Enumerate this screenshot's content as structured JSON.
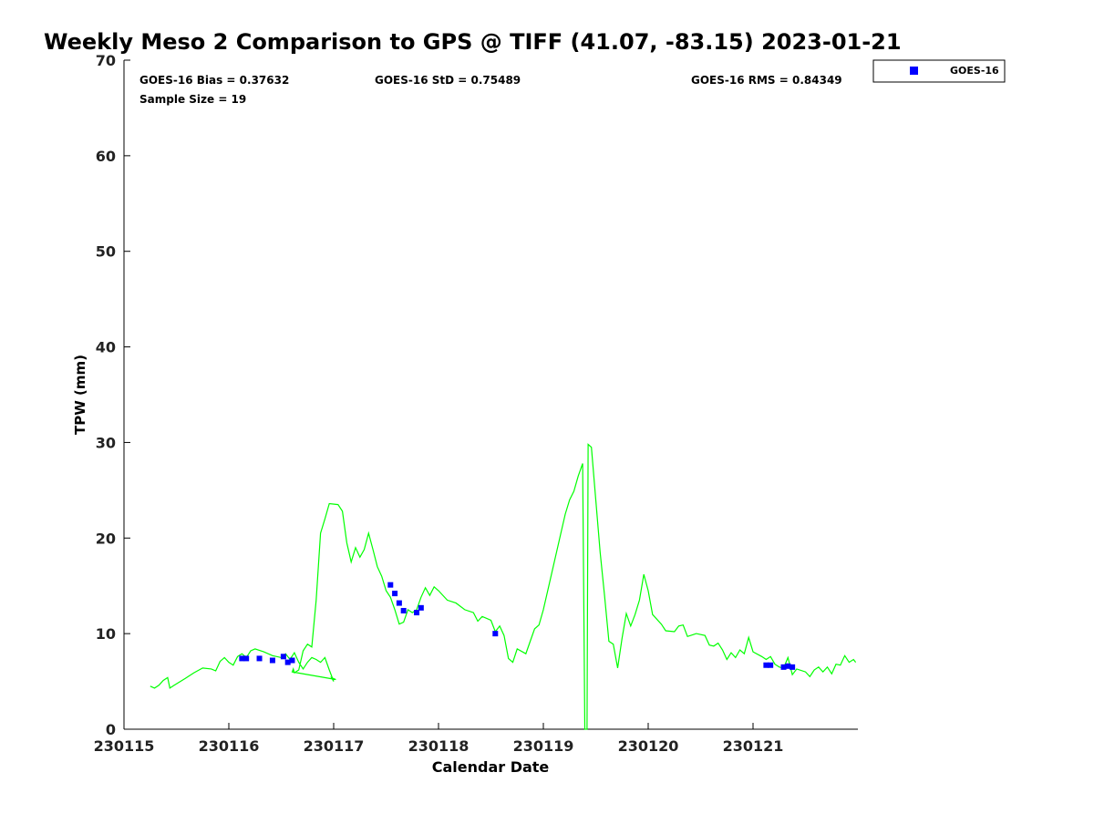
{
  "chart_data": {
    "type": "line",
    "title": "Weekly Meso 2 Comparison to GPS @ TIFF (41.07, -83.15) 2023-01-21",
    "xlabel": "Calendar Date",
    "ylabel": "TPW (mm)",
    "x_ticks": [
      "230115",
      "230116",
      "230117",
      "230118",
      "230119",
      "230120",
      "230121"
    ],
    "xlim": [
      "2023-01-15T00:00",
      "2023-01-22T00:00"
    ],
    "ylim": [
      0,
      70
    ],
    "y_ticks": [
      0,
      10,
      20,
      30,
      40,
      50,
      60,
      70
    ],
    "grid": false,
    "legend_position": "outside-top-right",
    "stats": {
      "bias": "GOES-16 Bias = 0.37632",
      "std": "GOES-16 StD = 0.75489",
      "rms": "GOES-16 RMS = 0.84349",
      "sample": "Sample Size = 19"
    },
    "series": [
      {
        "name": "GPS",
        "kind": "line",
        "color": "#00ff00",
        "points": [
          [
            "2023-01-15T06:00",
            4.5
          ],
          [
            "2023-01-15T07:00",
            4.3
          ],
          [
            "2023-01-15T08:00",
            4.6
          ],
          [
            "2023-01-15T09:00",
            5.1
          ],
          [
            "2023-01-15T10:00",
            5.4
          ],
          [
            "2023-01-15T10:30",
            4.3
          ],
          [
            "2023-01-15T11:30",
            4.6
          ],
          [
            "2023-01-15T14:00",
            5.3
          ],
          [
            "2023-01-15T16:00",
            5.9
          ],
          [
            "2023-01-15T18:00",
            6.4
          ],
          [
            "2023-01-15T20:00",
            6.3
          ],
          [
            "2023-01-15T21:00",
            6.1
          ],
          [
            "2023-01-15T22:00",
            7.1
          ],
          [
            "2023-01-15T23:00",
            7.5
          ],
          [
            "2023-01-16T00:00",
            7.0
          ],
          [
            "2023-01-16T01:00",
            6.7
          ],
          [
            "2023-01-16T02:00",
            7.6
          ],
          [
            "2023-01-16T03:00",
            7.9
          ],
          [
            "2023-01-16T04:00",
            7.5
          ],
          [
            "2023-01-16T05:00",
            8.2
          ],
          [
            "2023-01-16T06:00",
            8.4
          ],
          [
            "2023-01-16T08:00",
            8.1
          ],
          [
            "2023-01-16T10:00",
            7.7
          ],
          [
            "2023-01-16T12:00",
            7.5
          ],
          [
            "2023-01-16T13:00",
            7.9
          ],
          [
            "2023-01-16T14:00",
            7.3
          ],
          [
            "2023-01-16T15:00",
            8.0
          ],
          [
            "2023-01-16T16:00",
            7.0
          ],
          [
            "2023-01-16T17:00",
            6.3
          ],
          [
            "2023-01-16T18:00",
            7.0
          ],
          [
            "2023-01-16T19:00",
            7.5
          ],
          [
            "2023-01-16T20:00",
            7.3
          ],
          [
            "2023-01-16T21:00",
            7.0
          ],
          [
            "2023-01-16T22:00",
            7.5
          ],
          [
            "2023-01-16T23:00",
            6.2
          ],
          [
            "2023-01-17T00:00",
            5.0
          ],
          [
            "2023-01-16T23:30",
            5.4
          ],
          [
            "2023-01-17T00:30",
            5.2
          ],
          [
            "2023-01-16T14:30",
            6.0
          ],
          [
            "2023-01-16T14:45",
            6.3
          ],
          [
            "2023-01-16T15:00",
            5.9
          ],
          [
            "2023-01-16T16:00",
            6.2
          ],
          [
            "2023-01-16T17:00",
            8.2
          ],
          [
            "2023-01-16T18:00",
            8.9
          ],
          [
            "2023-01-16T19:00",
            8.6
          ],
          [
            "2023-01-16T20:00",
            13.5
          ],
          [
            "2023-01-16T21:00",
            20.5
          ],
          [
            "2023-01-16T22:00",
            22.0
          ],
          [
            "2023-01-16T23:00",
            23.6
          ],
          [
            "2023-01-17T01:00",
            23.5
          ],
          [
            "2023-01-17T02:00",
            22.8
          ],
          [
            "2023-01-17T03:00",
            19.5
          ],
          [
            "2023-01-17T04:00",
            17.5
          ],
          [
            "2023-01-17T05:00",
            19.0
          ],
          [
            "2023-01-17T06:00",
            18.0
          ],
          [
            "2023-01-17T07:00",
            18.8
          ],
          [
            "2023-01-17T08:00",
            20.5
          ],
          [
            "2023-01-17T09:00",
            18.8
          ],
          [
            "2023-01-17T10:00",
            17.0
          ],
          [
            "2023-01-17T11:00",
            16.0
          ],
          [
            "2023-01-17T12:00",
            14.5
          ],
          [
            "2023-01-17T13:00",
            13.8
          ],
          [
            "2023-01-17T14:00",
            12.5
          ],
          [
            "2023-01-17T15:00",
            11.0
          ],
          [
            "2023-01-17T16:00",
            11.2
          ],
          [
            "2023-01-17T17:00",
            12.5
          ],
          [
            "2023-01-17T18:00",
            12.2
          ],
          [
            "2023-01-17T19:00",
            12.5
          ],
          [
            "2023-01-17T20:00",
            13.8
          ],
          [
            "2023-01-17T21:00",
            14.8
          ],
          [
            "2023-01-17T22:00",
            14.0
          ],
          [
            "2023-01-17T23:00",
            14.9
          ],
          [
            "2023-01-18T00:00",
            14.5
          ],
          [
            "2023-01-18T02:00",
            13.5
          ],
          [
            "2023-01-18T04:00",
            13.2
          ],
          [
            "2023-01-18T06:00",
            12.5
          ],
          [
            "2023-01-18T08:00",
            12.2
          ],
          [
            "2023-01-18T09:00",
            11.3
          ],
          [
            "2023-01-18T10:00",
            11.8
          ],
          [
            "2023-01-18T12:00",
            11.4
          ],
          [
            "2023-01-18T13:00",
            10.2
          ],
          [
            "2023-01-18T14:00",
            10.8
          ],
          [
            "2023-01-18T15:00",
            9.8
          ],
          [
            "2023-01-18T16:00",
            7.4
          ],
          [
            "2023-01-18T17:00",
            7.0
          ],
          [
            "2023-01-18T18:00",
            8.4
          ],
          [
            "2023-01-18T20:00",
            7.9
          ],
          [
            "2023-01-18T21:00",
            9.2
          ],
          [
            "2023-01-18T22:00",
            10.5
          ],
          [
            "2023-01-18T23:00",
            10.9
          ],
          [
            "2023-01-19T00:00",
            12.5
          ],
          [
            "2023-01-19T02:00",
            16.5
          ],
          [
            "2023-01-19T04:00",
            20.5
          ],
          [
            "2023-01-19T05:00",
            22.5
          ],
          [
            "2023-01-19T06:00",
            24.0
          ],
          [
            "2023-01-19T07:00",
            24.9
          ],
          [
            "2023-01-19T08:00",
            26.5
          ],
          [
            "2023-01-19T09:00",
            27.8
          ],
          [
            "2023-01-19T09:30",
            0.0
          ],
          [
            "2023-01-19T10:00",
            0.0
          ],
          [
            "2023-01-19T10:15",
            29.8
          ],
          [
            "2023-01-19T11:00",
            29.5
          ],
          [
            "2023-01-19T12:00",
            24.0
          ],
          [
            "2023-01-19T13:00",
            18.5
          ],
          [
            "2023-01-19T14:00",
            14.0
          ],
          [
            "2023-01-19T15:00",
            9.2
          ],
          [
            "2023-01-19T16:00",
            8.9
          ],
          [
            "2023-01-19T17:00",
            6.4
          ],
          [
            "2023-01-19T18:00",
            9.5
          ],
          [
            "2023-01-19T19:00",
            12.1
          ],
          [
            "2023-01-19T20:00",
            10.8
          ],
          [
            "2023-01-19T21:00",
            12.0
          ],
          [
            "2023-01-19T22:00",
            13.5
          ],
          [
            "2023-01-19T23:00",
            16.2
          ],
          [
            "2023-01-20T00:00",
            14.5
          ],
          [
            "2023-01-20T01:00",
            12.0
          ],
          [
            "2023-01-20T03:00",
            11.0
          ],
          [
            "2023-01-20T04:00",
            10.3
          ],
          [
            "2023-01-20T06:00",
            10.2
          ],
          [
            "2023-01-20T07:00",
            10.8
          ],
          [
            "2023-01-20T08:00",
            10.9
          ],
          [
            "2023-01-20T09:00",
            9.7
          ],
          [
            "2023-01-20T11:00",
            10.0
          ],
          [
            "2023-01-20T13:00",
            9.8
          ],
          [
            "2023-01-20T14:00",
            8.8
          ],
          [
            "2023-01-20T15:00",
            8.7
          ],
          [
            "2023-01-20T16:00",
            9.0
          ],
          [
            "2023-01-20T17:00",
            8.3
          ],
          [
            "2023-01-20T18:00",
            7.3
          ],
          [
            "2023-01-20T19:00",
            8.0
          ],
          [
            "2023-01-20T20:00",
            7.5
          ],
          [
            "2023-01-20T21:00",
            8.3
          ],
          [
            "2023-01-20T22:00",
            7.9
          ],
          [
            "2023-01-20T23:00",
            9.6
          ],
          [
            "2023-01-21T00:00",
            8.1
          ],
          [
            "2023-01-21T02:00",
            7.6
          ],
          [
            "2023-01-21T03:00",
            7.3
          ],
          [
            "2023-01-21T04:00",
            7.6
          ],
          [
            "2023-01-21T05:00",
            6.8
          ],
          [
            "2023-01-21T06:00",
            6.5
          ],
          [
            "2023-01-21T07:00",
            6.4
          ],
          [
            "2023-01-21T08:00",
            7.5
          ],
          [
            "2023-01-21T09:00",
            5.7
          ],
          [
            "2023-01-21T10:00",
            6.3
          ],
          [
            "2023-01-21T12:00",
            6.0
          ],
          [
            "2023-01-21T13:00",
            5.5
          ],
          [
            "2023-01-21T14:00",
            6.2
          ],
          [
            "2023-01-21T15:00",
            6.5
          ],
          [
            "2023-01-21T16:00",
            6.0
          ],
          [
            "2023-01-21T17:00",
            6.5
          ],
          [
            "2023-01-21T18:00",
            5.8
          ],
          [
            "2023-01-21T19:00",
            6.8
          ],
          [
            "2023-01-21T20:00",
            6.7
          ],
          [
            "2023-01-21T21:00",
            7.7
          ],
          [
            "2023-01-21T22:00",
            7.0
          ],
          [
            "2023-01-21T23:00",
            7.3
          ],
          [
            "2023-01-21T23:30",
            7.0
          ]
        ]
      },
      {
        "name": "GOES-16",
        "kind": "scatter",
        "color": "#0000ff",
        "points": [
          [
            "2023-01-16T03:00",
            7.4
          ],
          [
            "2023-01-16T04:00",
            7.4
          ],
          [
            "2023-01-16T07:00",
            7.4
          ],
          [
            "2023-01-16T10:00",
            7.2
          ],
          [
            "2023-01-16T12:30",
            7.6
          ],
          [
            "2023-01-16T13:30",
            7.0
          ],
          [
            "2023-01-16T14:30",
            7.2
          ],
          [
            "2023-01-17T13:00",
            15.1
          ],
          [
            "2023-01-17T14:00",
            14.2
          ],
          [
            "2023-01-17T15:00",
            13.2
          ],
          [
            "2023-01-17T16:00",
            12.4
          ],
          [
            "2023-01-17T19:00",
            12.2
          ],
          [
            "2023-01-17T20:00",
            12.7
          ],
          [
            "2023-01-18T13:00",
            10.0
          ],
          [
            "2023-01-21T03:00",
            6.7
          ],
          [
            "2023-01-21T04:00",
            6.7
          ],
          [
            "2023-01-21T07:00",
            6.5
          ],
          [
            "2023-01-21T08:00",
            6.6
          ],
          [
            "2023-01-21T09:00",
            6.5
          ]
        ]
      }
    ]
  }
}
